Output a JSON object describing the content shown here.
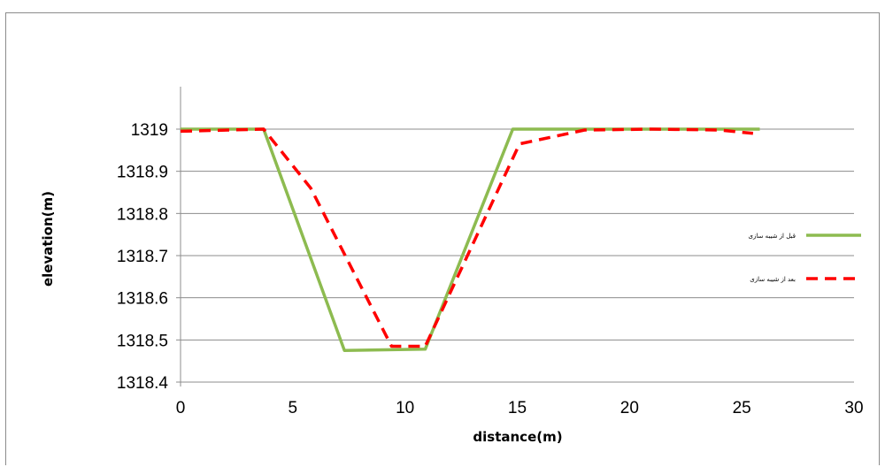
{
  "chart_data": {
    "type": "line",
    "title": "",
    "xlabel": "distance(m)",
    "ylabel": "elevation(m)",
    "xlim": [
      0,
      30
    ],
    "ylim": [
      1318.4,
      1319
    ],
    "xticks": [
      0,
      5,
      10,
      15,
      20,
      25,
      30
    ],
    "yticks": [
      1318.4,
      1318.5,
      1318.6,
      1318.7,
      1318.8,
      1318.9,
      1319
    ],
    "ytick_labels": [
      "1318.4",
      "1318.5",
      "1318.6",
      "1318.7",
      "1318.8",
      "1318.9",
      "1319"
    ],
    "grid": "horizontal",
    "legend_position": "right",
    "series": [
      {
        "name": "قبل از شیبه سازی",
        "color": "#8dbb50",
        "style": "solid",
        "x": [
          0,
          3.7,
          7.3,
          10.9,
          14.8,
          25.8
        ],
        "y": [
          1319,
          1319,
          1318.475,
          1318.478,
          1319,
          1319
        ]
      },
      {
        "name": "بعد از شیبه سازی",
        "color": "#ff0000",
        "style": "dashed",
        "x": [
          0,
          3.7,
          5.8,
          9.4,
          10.9,
          15.1,
          18.0,
          21.0,
          24.0,
          25.5
        ],
        "y": [
          1318.995,
          1319,
          1318.86,
          1318.485,
          1318.485,
          1318.965,
          1318.998,
          1319,
          1318.998,
          1318.99
        ]
      }
    ]
  }
}
